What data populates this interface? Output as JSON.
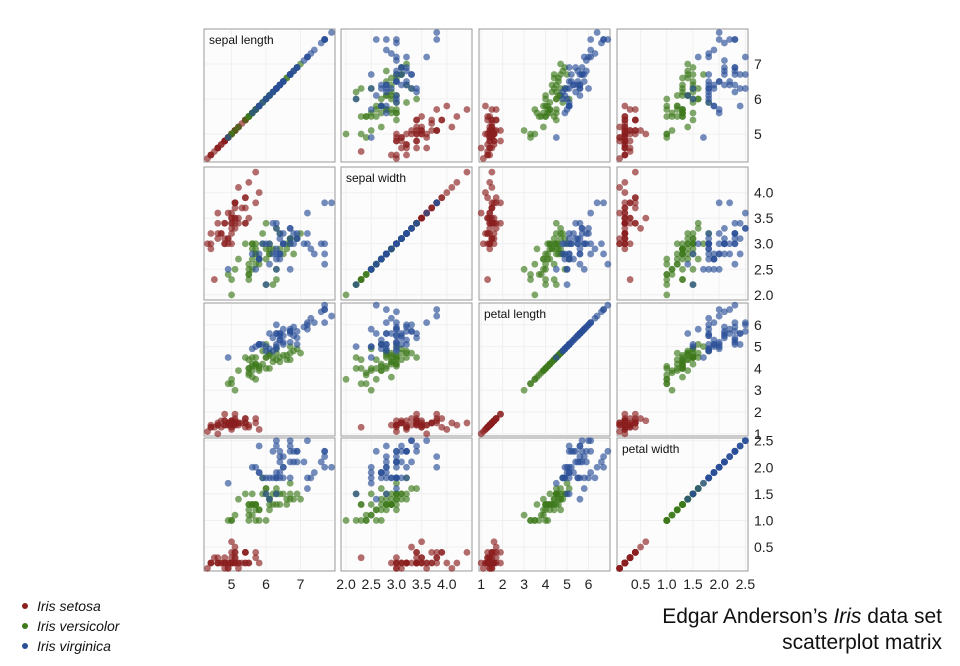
{
  "chart_data": {
    "type": "scatter",
    "subtype": "scatterplot-matrix",
    "variables": [
      {
        "key": "sepal_length",
        "label": "sepal length",
        "range": [
          4.2,
          8.0
        ],
        "ticks": [
          5,
          6,
          7
        ]
      },
      {
        "key": "sepal_width",
        "label": "sepal width",
        "range": [
          1.9,
          4.5
        ],
        "ticks": [
          2.0,
          2.5,
          3.0,
          3.5,
          4.0
        ],
        "tick_labels": [
          "2.0",
          "2.5",
          "3.0",
          "3.5",
          "4.0"
        ]
      },
      {
        "key": "petal_length",
        "label": "petal length",
        "range": [
          0.9,
          7.0
        ],
        "ticks": [
          1,
          2,
          3,
          4,
          5,
          6
        ]
      },
      {
        "key": "petal_width",
        "label": "petal width",
        "range": [
          0.05,
          2.55
        ],
        "ticks": [
          0.5,
          1.0,
          1.5,
          2.0,
          2.5
        ],
        "tick_labels": [
          "0.5",
          "1.0",
          "1.5",
          "2.0",
          "2.5"
        ]
      }
    ],
    "species": [
      {
        "name": "Iris setosa",
        "color": "#8b1e1e",
        "data": [
          [
            5.1,
            3.5,
            1.4,
            0.2
          ],
          [
            4.9,
            3.0,
            1.4,
            0.2
          ],
          [
            4.7,
            3.2,
            1.3,
            0.2
          ],
          [
            4.6,
            3.1,
            1.5,
            0.2
          ],
          [
            5.0,
            3.6,
            1.4,
            0.2
          ],
          [
            5.4,
            3.9,
            1.7,
            0.4
          ],
          [
            4.6,
            3.4,
            1.4,
            0.3
          ],
          [
            5.0,
            3.4,
            1.5,
            0.2
          ],
          [
            4.4,
            2.9,
            1.4,
            0.2
          ],
          [
            4.9,
            3.1,
            1.5,
            0.1
          ],
          [
            5.4,
            3.7,
            1.5,
            0.2
          ],
          [
            4.8,
            3.4,
            1.6,
            0.2
          ],
          [
            4.8,
            3.0,
            1.4,
            0.1
          ],
          [
            4.3,
            3.0,
            1.1,
            0.1
          ],
          [
            5.8,
            4.0,
            1.2,
            0.2
          ],
          [
            5.7,
            4.4,
            1.5,
            0.4
          ],
          [
            5.4,
            3.9,
            1.3,
            0.4
          ],
          [
            5.1,
            3.5,
            1.4,
            0.3
          ],
          [
            5.7,
            3.8,
            1.7,
            0.3
          ],
          [
            5.1,
            3.8,
            1.5,
            0.3
          ],
          [
            5.4,
            3.4,
            1.7,
            0.2
          ],
          [
            5.1,
            3.7,
            1.5,
            0.4
          ],
          [
            4.6,
            3.6,
            1.0,
            0.2
          ],
          [
            5.1,
            3.3,
            1.7,
            0.5
          ],
          [
            4.8,
            3.4,
            1.9,
            0.2
          ],
          [
            5.0,
            3.0,
            1.6,
            0.2
          ],
          [
            5.0,
            3.4,
            1.6,
            0.4
          ],
          [
            5.2,
            3.5,
            1.5,
            0.2
          ],
          [
            5.2,
            3.4,
            1.4,
            0.2
          ],
          [
            4.7,
            3.2,
            1.6,
            0.2
          ],
          [
            4.8,
            3.1,
            1.6,
            0.2
          ],
          [
            5.4,
            3.4,
            1.5,
            0.4
          ],
          [
            5.2,
            4.1,
            1.5,
            0.1
          ],
          [
            5.5,
            4.2,
            1.4,
            0.2
          ],
          [
            4.9,
            3.1,
            1.5,
            0.2
          ],
          [
            5.0,
            3.2,
            1.2,
            0.2
          ],
          [
            5.5,
            3.5,
            1.3,
            0.2
          ],
          [
            4.9,
            3.6,
            1.4,
            0.1
          ],
          [
            4.4,
            3.0,
            1.3,
            0.2
          ],
          [
            5.1,
            3.4,
            1.5,
            0.2
          ],
          [
            5.0,
            3.5,
            1.3,
            0.3
          ],
          [
            4.5,
            2.3,
            1.3,
            0.3
          ],
          [
            4.4,
            3.2,
            1.3,
            0.2
          ],
          [
            5.0,
            3.5,
            1.6,
            0.6
          ],
          [
            5.1,
            3.8,
            1.9,
            0.4
          ],
          [
            4.8,
            3.0,
            1.4,
            0.3
          ],
          [
            5.1,
            3.8,
            1.6,
            0.2
          ],
          [
            4.6,
            3.2,
            1.4,
            0.2
          ],
          [
            5.3,
            3.7,
            1.5,
            0.2
          ],
          [
            5.0,
            3.3,
            1.4,
            0.2
          ]
        ]
      },
      {
        "name": "Iris versicolor",
        "color": "#3d7a1c",
        "data": [
          [
            7.0,
            3.2,
            4.7,
            1.4
          ],
          [
            6.4,
            3.2,
            4.5,
            1.5
          ],
          [
            6.9,
            3.1,
            4.9,
            1.5
          ],
          [
            5.5,
            2.3,
            4.0,
            1.3
          ],
          [
            6.5,
            2.8,
            4.6,
            1.5
          ],
          [
            5.7,
            2.8,
            4.5,
            1.3
          ],
          [
            6.3,
            3.3,
            4.7,
            1.6
          ],
          [
            4.9,
            2.4,
            3.3,
            1.0
          ],
          [
            6.6,
            2.9,
            4.6,
            1.3
          ],
          [
            5.2,
            2.7,
            3.9,
            1.4
          ],
          [
            5.0,
            2.0,
            3.5,
            1.0
          ],
          [
            5.9,
            3.0,
            4.2,
            1.5
          ],
          [
            6.0,
            2.2,
            4.0,
            1.0
          ],
          [
            6.1,
            2.9,
            4.7,
            1.4
          ],
          [
            5.6,
            2.9,
            3.6,
            1.3
          ],
          [
            6.7,
            3.1,
            4.4,
            1.4
          ],
          [
            5.6,
            3.0,
            4.5,
            1.5
          ],
          [
            5.8,
            2.7,
            4.1,
            1.0
          ],
          [
            6.2,
            2.2,
            4.5,
            1.5
          ],
          [
            5.6,
            2.5,
            3.9,
            1.1
          ],
          [
            5.9,
            3.2,
            4.8,
            1.8
          ],
          [
            6.1,
            2.8,
            4.0,
            1.3
          ],
          [
            6.3,
            2.5,
            4.9,
            1.5
          ],
          [
            6.1,
            2.8,
            4.7,
            1.2
          ],
          [
            6.4,
            2.9,
            4.3,
            1.3
          ],
          [
            6.6,
            3.0,
            4.4,
            1.4
          ],
          [
            6.8,
            2.8,
            4.8,
            1.4
          ],
          [
            6.7,
            3.0,
            5.0,
            1.7
          ],
          [
            6.0,
            2.9,
            4.5,
            1.5
          ],
          [
            5.7,
            2.6,
            3.5,
            1.0
          ],
          [
            5.5,
            2.4,
            3.8,
            1.1
          ],
          [
            5.5,
            2.4,
            3.7,
            1.0
          ],
          [
            5.8,
            2.7,
            3.9,
            1.2
          ],
          [
            6.0,
            2.7,
            5.1,
            1.6
          ],
          [
            5.4,
            3.0,
            4.5,
            1.5
          ],
          [
            6.0,
            3.4,
            4.5,
            1.6
          ],
          [
            6.7,
            3.1,
            4.7,
            1.5
          ],
          [
            6.3,
            2.3,
            4.4,
            1.3
          ],
          [
            5.6,
            3.0,
            4.1,
            1.3
          ],
          [
            5.5,
            2.5,
            4.0,
            1.3
          ],
          [
            5.5,
            2.6,
            4.4,
            1.2
          ],
          [
            6.1,
            3.0,
            4.6,
            1.4
          ],
          [
            5.8,
            2.6,
            4.0,
            1.2
          ],
          [
            5.0,
            2.3,
            3.3,
            1.0
          ],
          [
            5.6,
            2.7,
            4.2,
            1.3
          ],
          [
            5.7,
            3.0,
            4.2,
            1.2
          ],
          [
            5.7,
            2.9,
            4.2,
            1.3
          ],
          [
            6.2,
            2.9,
            4.3,
            1.3
          ],
          [
            5.1,
            2.5,
            3.0,
            1.1
          ],
          [
            5.7,
            2.8,
            4.1,
            1.3
          ]
        ]
      },
      {
        "name": "Iris virginica",
        "color": "#2a4f96",
        "data": [
          [
            6.3,
            3.3,
            6.0,
            2.5
          ],
          [
            5.8,
            2.7,
            5.1,
            1.9
          ],
          [
            7.1,
            3.0,
            5.9,
            2.1
          ],
          [
            6.3,
            2.9,
            5.6,
            1.8
          ],
          [
            6.5,
            3.0,
            5.8,
            2.2
          ],
          [
            7.6,
            3.0,
            6.6,
            2.1
          ],
          [
            4.9,
            2.5,
            4.5,
            1.7
          ],
          [
            7.3,
            2.9,
            6.3,
            1.8
          ],
          [
            6.7,
            2.5,
            5.8,
            1.8
          ],
          [
            7.2,
            3.6,
            6.1,
            2.5
          ],
          [
            6.5,
            3.2,
            5.1,
            2.0
          ],
          [
            6.4,
            2.7,
            5.3,
            1.9
          ],
          [
            6.8,
            3.0,
            5.5,
            2.1
          ],
          [
            5.7,
            2.5,
            5.0,
            2.0
          ],
          [
            5.8,
            2.8,
            5.1,
            2.4
          ],
          [
            6.4,
            3.2,
            5.3,
            2.3
          ],
          [
            6.5,
            3.0,
            5.5,
            1.8
          ],
          [
            7.7,
            3.8,
            6.7,
            2.2
          ],
          [
            7.7,
            2.6,
            6.9,
            2.3
          ],
          [
            6.0,
            2.2,
            5.0,
            1.5
          ],
          [
            6.9,
            3.2,
            5.7,
            2.3
          ],
          [
            5.6,
            2.8,
            4.9,
            2.0
          ],
          [
            7.7,
            2.8,
            6.7,
            2.0
          ],
          [
            6.3,
            2.7,
            4.9,
            1.8
          ],
          [
            6.7,
            3.3,
            5.7,
            2.1
          ],
          [
            7.2,
            3.2,
            6.0,
            1.8
          ],
          [
            6.2,
            2.8,
            4.8,
            1.8
          ],
          [
            6.1,
            3.0,
            4.9,
            1.8
          ],
          [
            6.4,
            2.8,
            5.6,
            2.1
          ],
          [
            7.2,
            3.0,
            5.8,
            1.6
          ],
          [
            7.4,
            2.8,
            6.1,
            1.9
          ],
          [
            7.9,
            3.8,
            6.4,
            2.0
          ],
          [
            6.4,
            2.8,
            5.6,
            2.2
          ],
          [
            6.3,
            2.8,
            5.1,
            1.5
          ],
          [
            6.1,
            2.6,
            5.6,
            1.4
          ],
          [
            7.7,
            3.0,
            6.1,
            2.3
          ],
          [
            6.3,
            3.4,
            5.6,
            2.4
          ],
          [
            6.4,
            3.1,
            5.5,
            1.8
          ],
          [
            6.0,
            3.0,
            4.8,
            1.8
          ],
          [
            6.9,
            3.1,
            5.4,
            2.1
          ],
          [
            6.7,
            3.1,
            5.6,
            2.4
          ],
          [
            6.9,
            3.1,
            5.1,
            2.3
          ],
          [
            5.8,
            2.7,
            5.1,
            1.9
          ],
          [
            6.8,
            3.2,
            5.9,
            2.3
          ],
          [
            6.7,
            3.3,
            5.7,
            2.5
          ],
          [
            6.7,
            3.0,
            5.2,
            2.3
          ],
          [
            6.3,
            2.5,
            5.0,
            1.9
          ],
          [
            6.5,
            3.0,
            5.2,
            2.0
          ],
          [
            6.2,
            3.4,
            5.4,
            2.3
          ],
          [
            5.9,
            3.0,
            5.1,
            1.8
          ]
        ]
      }
    ],
    "grid": true,
    "legend_position": "bottom-left"
  },
  "legend": {
    "items": [
      "Iris setosa",
      "Iris versicolor",
      "Iris virginica"
    ]
  },
  "caption": {
    "line1_before": "Edgar Anderson’s ",
    "line1_italic": "Iris",
    "line1_after": " data set",
    "line2": "scatterplot matrix"
  }
}
